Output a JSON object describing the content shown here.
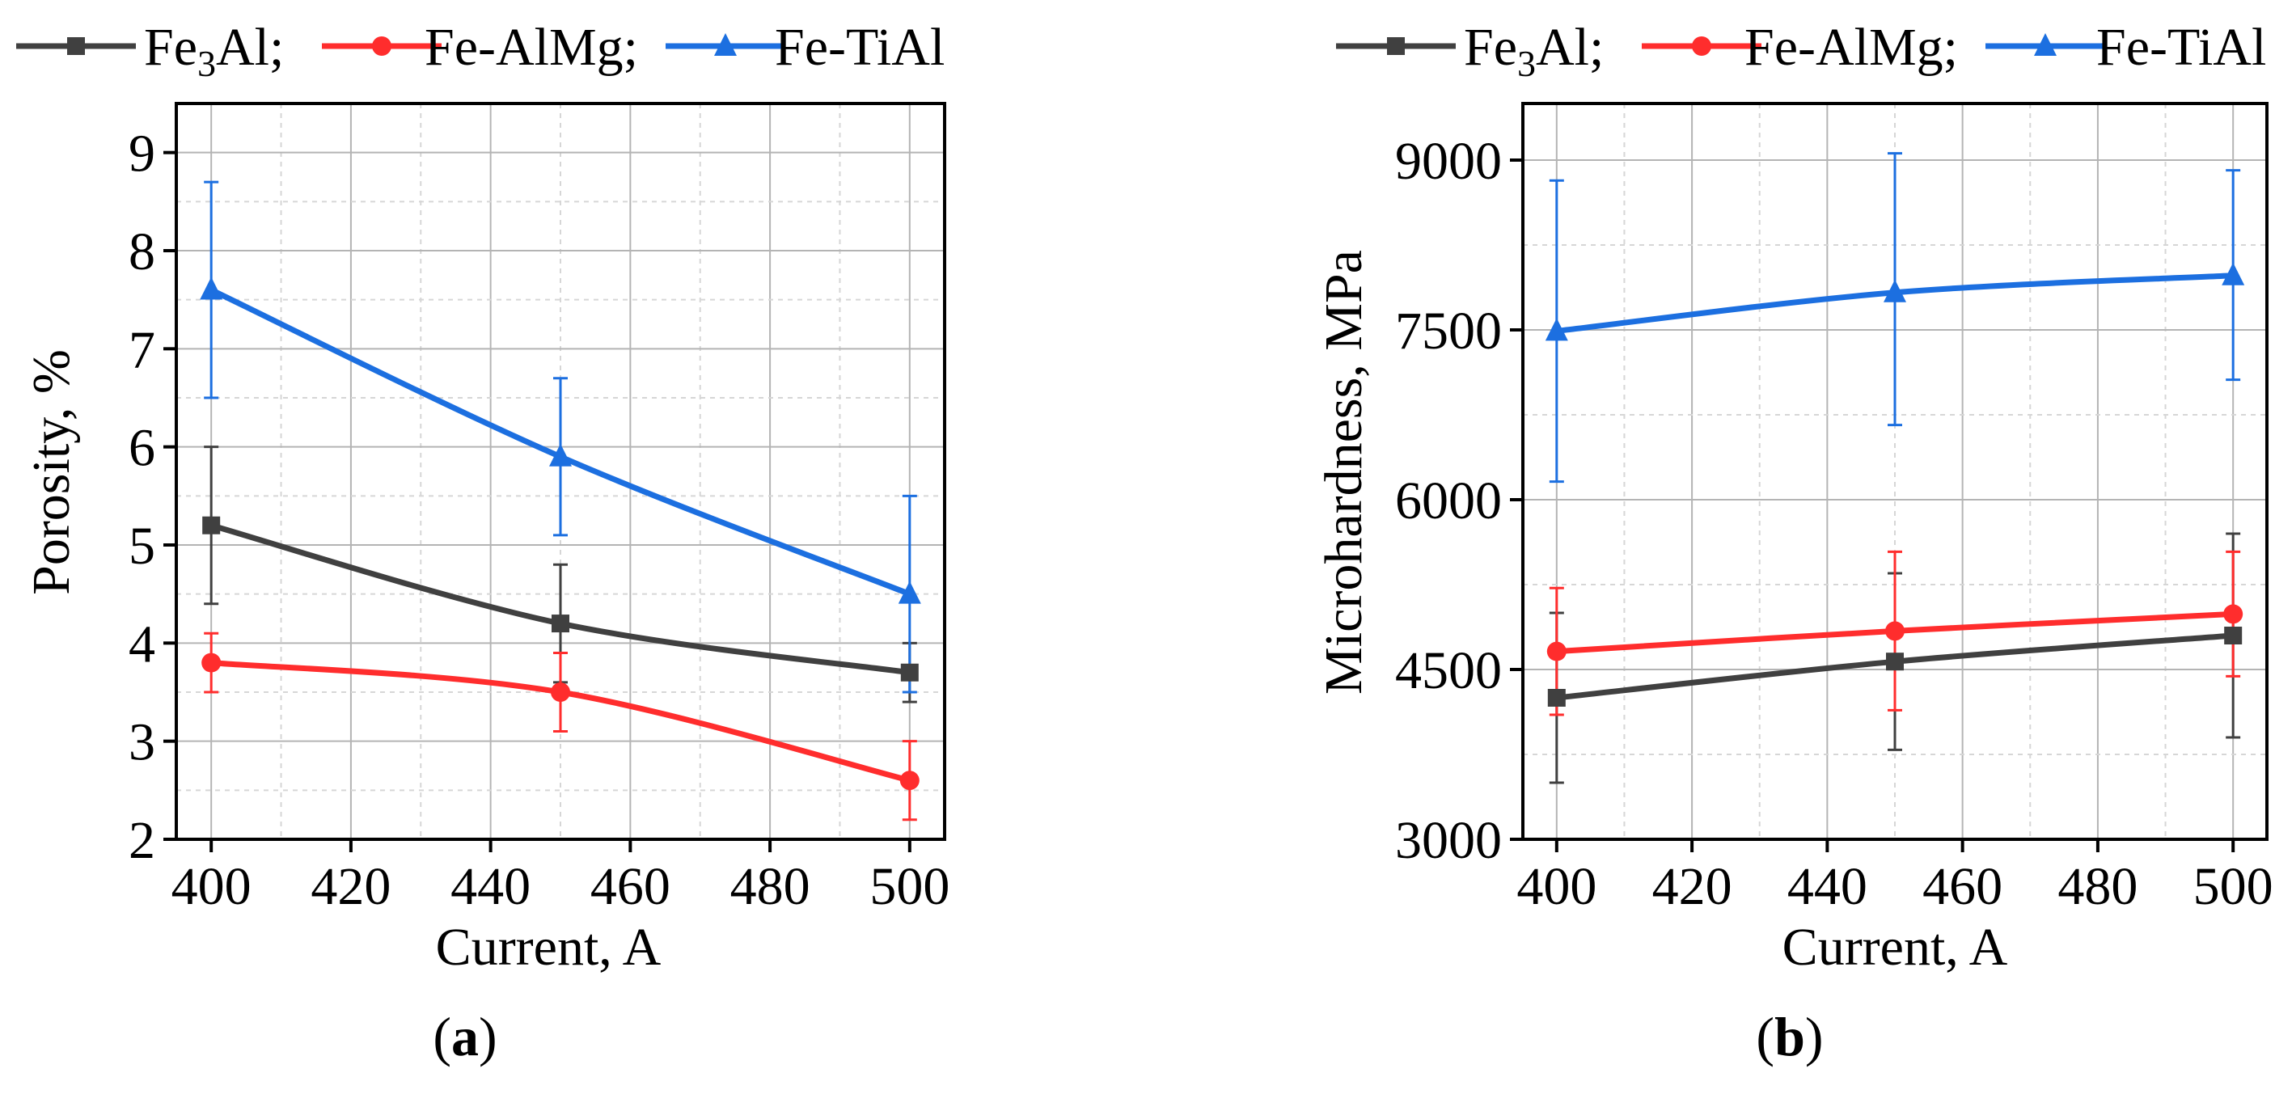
{
  "legend_entries": [
    {
      "name_main": "Fe",
      "name_sub": "3",
      "name_rest": "Al;",
      "color": "#404040",
      "marker": "square"
    },
    {
      "name_main": "Fe-AlMg;",
      "name_sub": "",
      "name_rest": "",
      "color": "#ff2d2d",
      "marker": "circle"
    },
    {
      "name_main": "Fe-TiAl",
      "name_sub": "",
      "name_rest": "",
      "color": "#1c6fe0",
      "marker": "triangle"
    }
  ],
  "chart_data": [
    {
      "type": "line",
      "panel_label": "a",
      "xlabel": "Current, A",
      "ylabel": "Porosity, %",
      "xlim": [
        395,
        505
      ],
      "ylim": [
        2,
        9.5
      ],
      "xticks": [
        400,
        420,
        440,
        460,
        480,
        500
      ],
      "yticks": [
        2,
        3,
        4,
        5,
        6,
        7,
        8,
        9
      ],
      "grid": true,
      "x": [
        400,
        450,
        500
      ],
      "series": [
        {
          "name": "Fe3Al",
          "values": [
            5.2,
            4.2,
            3.7
          ],
          "err_low": [
            0.8,
            0.6,
            0.3
          ],
          "err_high": [
            0.8,
            0.6,
            0.3
          ],
          "color": "#404040",
          "marker": "square"
        },
        {
          "name": "Fe-AlMg",
          "values": [
            3.8,
            3.5,
            2.6
          ],
          "err_low": [
            0.3,
            0.4,
            0.4
          ],
          "err_high": [
            0.3,
            0.4,
            0.4
          ],
          "color": "#ff2d2d",
          "marker": "circle"
        },
        {
          "name": "Fe-TiAl",
          "values": [
            7.6,
            5.9,
            4.5
          ],
          "err_low": [
            1.1,
            0.8,
            1.0
          ],
          "err_high": [
            1.1,
            0.8,
            1.0
          ],
          "color": "#1c6fe0",
          "marker": "triangle"
        }
      ]
    },
    {
      "type": "line",
      "panel_label": "b",
      "xlabel": "Current, A",
      "ylabel": "Microhardness, MPa",
      "xlim": [
        395,
        505
      ],
      "ylim": [
        3000,
        9500
      ],
      "xticks": [
        400,
        420,
        440,
        460,
        480,
        500
      ],
      "yticks": [
        3000,
        4500,
        6000,
        7500,
        9000
      ],
      "grid": true,
      "x": [
        400,
        450,
        500
      ],
      "series": [
        {
          "name": "Fe3Al",
          "values": [
            4250,
            4570,
            4800
          ],
          "err_low": [
            750,
            780,
            900
          ],
          "err_high": [
            750,
            780,
            900
          ],
          "color": "#404040",
          "marker": "square"
        },
        {
          "name": "Fe-AlMg",
          "values": [
            4660,
            4840,
            4990
          ],
          "err_low": [
            560,
            700,
            550
          ],
          "err_high": [
            560,
            700,
            550
          ],
          "color": "#ff2d2d",
          "marker": "circle"
        },
        {
          "name": "Fe-TiAl",
          "values": [
            7490,
            7830,
            7980
          ],
          "err_low": [
            1330,
            1170,
            920
          ],
          "err_high": [
            1330,
            1230,
            930
          ],
          "color": "#1c6fe0",
          "marker": "triangle"
        }
      ]
    }
  ]
}
